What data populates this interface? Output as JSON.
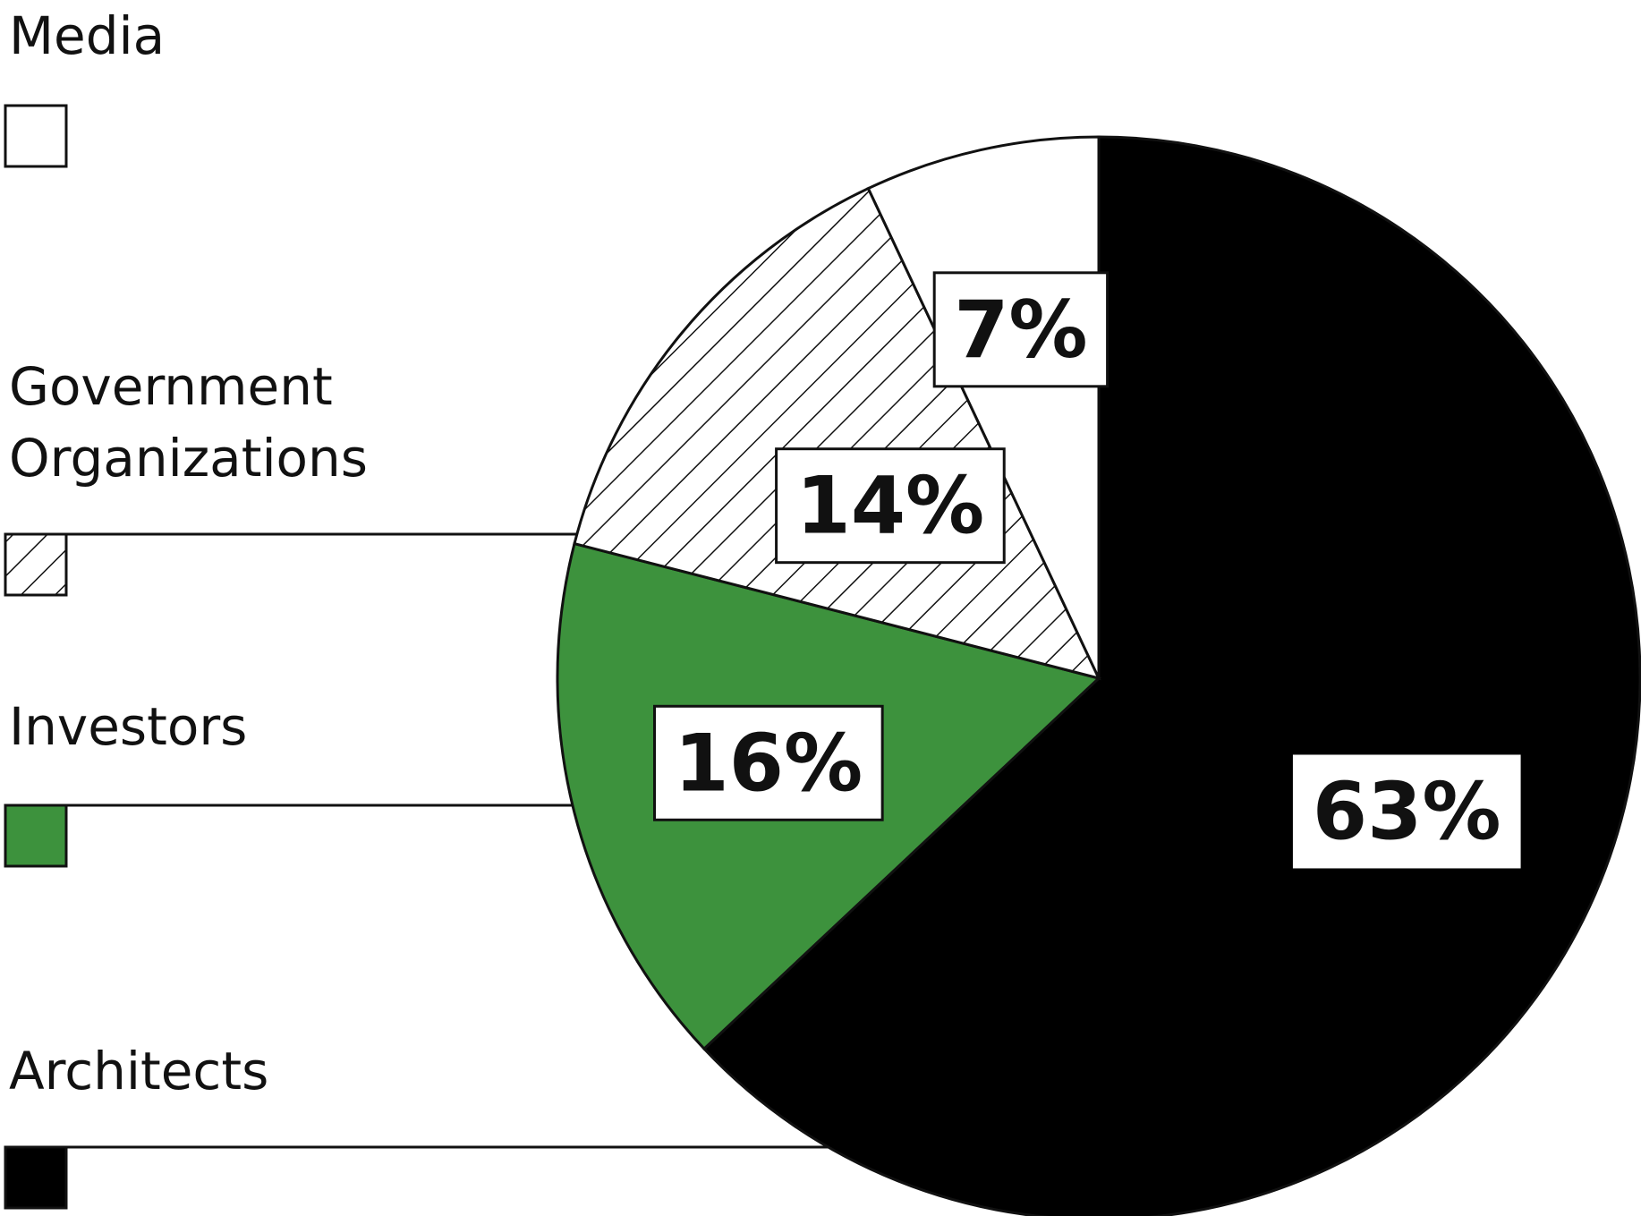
{
  "chart_data": {
    "type": "pie",
    "title": "",
    "legend_placement": "left",
    "start_angle_deg": 0,
    "direction": "clockwise",
    "slices": [
      {
        "name": "Architects",
        "value": 63,
        "label": "63%",
        "fill": "#000000",
        "pattern": "solid"
      },
      {
        "name": "Investors",
        "value": 16,
        "label": "16%",
        "fill": "#3d923d",
        "pattern": "solid"
      },
      {
        "name": "Government Organizations",
        "label_lines": [
          "Government",
          "Organizations"
        ],
        "value": 14,
        "label": "14%",
        "fill": "#ffffff",
        "pattern": "diagonal-hatch"
      },
      {
        "name": "Media",
        "value": 7,
        "label": "7%",
        "fill": "#ffffff",
        "pattern": "solid"
      }
    ]
  }
}
